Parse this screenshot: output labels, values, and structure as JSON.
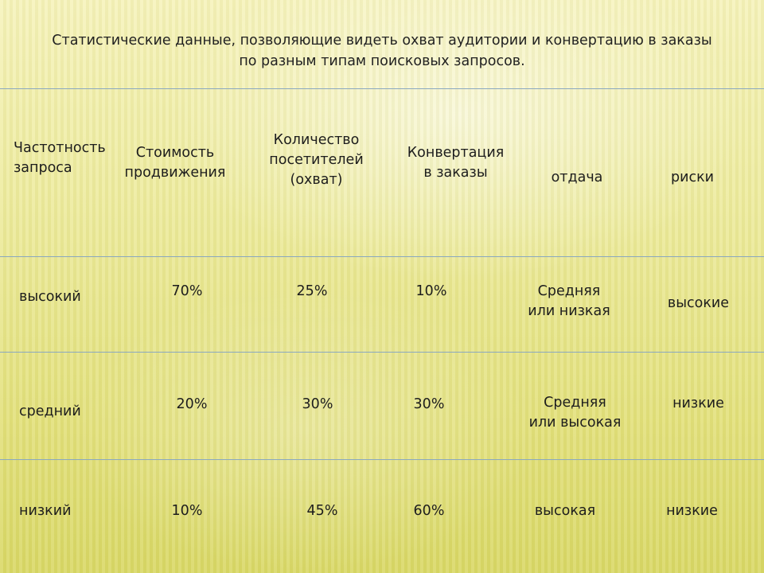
{
  "title": {
    "line1": "Статистические данные, позволяющие видеть охват аудитории и конвертацию в заказы",
    "line2": "по разным типам поисковых запросов."
  },
  "headers": {
    "frequency": {
      "l1": "Частотность",
      "l2": "запроса"
    },
    "cost": {
      "l1": "Стоимость",
      "l2": "продвижения"
    },
    "visitors": {
      "l1": "Количество",
      "l2": "посетителей",
      "l3": "(охват)"
    },
    "conversion": {
      "l1": "Конвертация",
      "l2": "в заказы"
    },
    "return": "отдача",
    "risks": "риски"
  },
  "rows": [
    {
      "frequency": "высокий",
      "cost": "70%",
      "visitors": "25%",
      "conversion": "10%",
      "return_l1": "Средняя",
      "return_l2": "или низкая",
      "risks": "высокие"
    },
    {
      "frequency": "средний",
      "cost": "20%",
      "visitors": "30%",
      "conversion": "30%",
      "return_l1": "Средняя",
      "return_l2": "или высокая",
      "risks": "низкие"
    },
    {
      "frequency": "низкий",
      "cost": "10%",
      "visitors": "45%",
      "conversion": "60%",
      "return_l1": "высокая",
      "return_l2": "",
      "risks": "низкие"
    }
  ]
}
